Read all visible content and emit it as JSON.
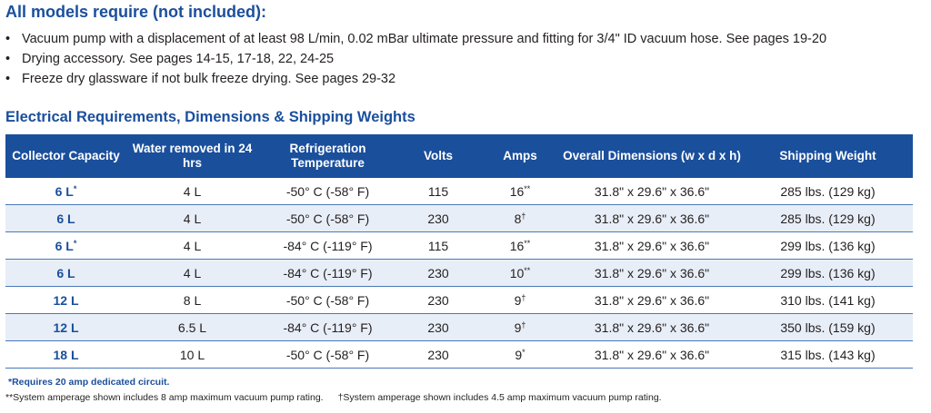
{
  "requirements": {
    "title": "All models require (not included):",
    "items": [
      "Vacuum pump with a displacement of at least 98 L/min, 0.02 mBar ultimate pressure and fitting for 3/4\" ID vacuum hose. See pages 19-20",
      "Drying accessory. See pages 14-15, 17-18, 22, 24-25",
      "Freeze dry glassware if not bulk freeze drying. See pages 29-32"
    ]
  },
  "electrical": {
    "title": "Electrical Requirements, Dimensions & Shipping Weights",
    "headers": [
      "Collector Capacity",
      "Water removed in 24 hrs",
      "Refrigeration Temperature",
      "Volts",
      "Amps",
      "Overall Dimensions (w x d x h)",
      "Shipping Weight"
    ],
    "rows": [
      {
        "capacity": "6 L",
        "cap_mark": "*",
        "water": "4 L",
        "temp": "-50° C (-58° F)",
        "volts": "115",
        "amps": "16",
        "amps_mark": "**",
        "dims": "31.8\" x 29.6\" x 36.6\"",
        "weight": "285 lbs. (129 kg)"
      },
      {
        "capacity": "6 L",
        "cap_mark": "",
        "water": "4 L",
        "temp": "-50° C (-58° F)",
        "volts": "230",
        "amps": "8",
        "amps_mark": "†",
        "dims": "31.8\" x 29.6\" x 36.6\"",
        "weight": "285 lbs. (129 kg)"
      },
      {
        "capacity": "6 L",
        "cap_mark": "*",
        "water": "4 L",
        "temp": "-84° C (-119° F)",
        "volts": "115",
        "amps": "16",
        "amps_mark": "**",
        "dims": "31.8\" x 29.6\" x 36.6\"",
        "weight": "299 lbs. (136 kg)"
      },
      {
        "capacity": "6 L",
        "cap_mark": "",
        "water": "4 L",
        "temp": "-84° C (-119° F)",
        "volts": "230",
        "amps": "10",
        "amps_mark": "**",
        "dims": "31.8\" x 29.6\" x 36.6\"",
        "weight": "299 lbs. (136 kg)"
      },
      {
        "capacity": "12 L",
        "cap_mark": "",
        "water": "8 L",
        "temp": "-50° C (-58° F)",
        "volts": "230",
        "amps": "9",
        "amps_mark": "†",
        "dims": "31.8\" x 29.6\" x 36.6\"",
        "weight": "310 lbs. (141 kg)"
      },
      {
        "capacity": "12 L",
        "cap_mark": "",
        "water": "6.5 L",
        "temp": "-84° C (-119° F)",
        "volts": "230",
        "amps": "9",
        "amps_mark": "†",
        "dims": "31.8\" x 29.6\" x 36.6\"",
        "weight": "350 lbs. (159 kg)"
      },
      {
        "capacity": "18 L",
        "cap_mark": "",
        "water": "10 L",
        "temp": "-50° C (-58° F)",
        "volts": "230",
        "amps": "9",
        "amps_mark": "*",
        "dims": "31.8\" x 29.6\" x 36.6\"",
        "weight": "315 lbs. (143 kg)"
      }
    ]
  },
  "footnotes": {
    "single_star": "*Requires 20 amp dedicated circuit.",
    "double_star": "**System amperage shown includes 8 amp maximum vacuum pump rating.",
    "dagger": "†System amperage shown includes 4.5 amp maximum vacuum pump rating."
  },
  "colors": {
    "brand_blue": "#1a4f9c",
    "row_stripe": "#e8eef7"
  }
}
